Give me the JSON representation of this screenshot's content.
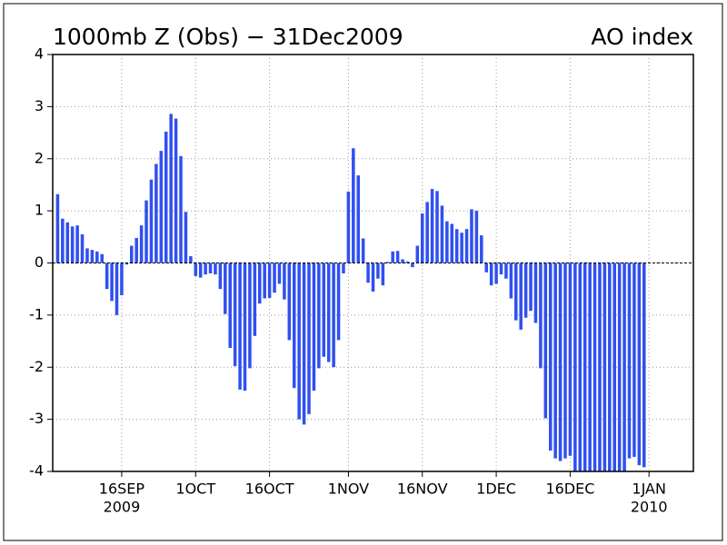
{
  "chart_data": {
    "type": "bar",
    "title": "1000mb Z (Obs) − 31Dec2009",
    "subtitle": "AO index",
    "color": "#3050f0",
    "grid": true,
    "x": [
      "2009-09-03",
      "2009-09-04",
      "2009-09-05",
      "2009-09-06",
      "2009-09-07",
      "2009-09-08",
      "2009-09-09",
      "2009-09-10",
      "2009-09-11",
      "2009-09-12",
      "2009-09-13",
      "2009-09-14",
      "2009-09-15",
      "2009-09-16",
      "2009-09-17",
      "2009-09-18",
      "2009-09-19",
      "2009-09-20",
      "2009-09-21",
      "2009-09-22",
      "2009-09-23",
      "2009-09-24",
      "2009-09-25",
      "2009-09-26",
      "2009-09-27",
      "2009-09-28",
      "2009-09-29",
      "2009-09-30",
      "2009-10-01",
      "2009-10-02",
      "2009-10-03",
      "2009-10-04",
      "2009-10-05",
      "2009-10-06",
      "2009-10-07",
      "2009-10-08",
      "2009-10-09",
      "2009-10-10",
      "2009-10-11",
      "2009-10-12",
      "2009-10-13",
      "2009-10-14",
      "2009-10-15",
      "2009-10-16",
      "2009-10-17",
      "2009-10-18",
      "2009-10-19",
      "2009-10-20",
      "2009-10-21",
      "2009-10-22",
      "2009-10-23",
      "2009-10-24",
      "2009-10-25",
      "2009-10-26",
      "2009-10-27",
      "2009-10-28",
      "2009-10-29",
      "2009-10-30",
      "2009-10-31",
      "2009-11-01",
      "2009-11-02",
      "2009-11-03",
      "2009-11-04",
      "2009-11-05",
      "2009-11-06",
      "2009-11-07",
      "2009-11-08",
      "2009-11-09",
      "2009-11-10",
      "2009-11-11",
      "2009-11-12",
      "2009-11-13",
      "2009-11-14",
      "2009-11-15",
      "2009-11-16",
      "2009-11-17",
      "2009-11-18",
      "2009-11-19",
      "2009-11-20",
      "2009-11-21",
      "2009-11-22",
      "2009-11-23",
      "2009-11-24",
      "2009-11-25",
      "2009-11-26",
      "2009-11-27",
      "2009-11-28",
      "2009-11-29",
      "2009-11-30",
      "2009-12-01",
      "2009-12-02",
      "2009-12-03",
      "2009-12-04",
      "2009-12-05",
      "2009-12-06",
      "2009-12-07",
      "2009-12-08",
      "2009-12-09",
      "2009-12-10",
      "2009-12-11",
      "2009-12-12",
      "2009-12-13",
      "2009-12-14",
      "2009-12-15",
      "2009-12-16",
      "2009-12-17",
      "2009-12-18",
      "2009-12-19",
      "2009-12-20",
      "2009-12-21",
      "2009-12-22",
      "2009-12-23",
      "2009-12-24",
      "2009-12-25",
      "2009-12-26",
      "2009-12-27",
      "2009-12-28",
      "2009-12-29",
      "2009-12-30",
      "2009-12-31"
    ],
    "values": [
      1.32,
      0.85,
      0.78,
      0.7,
      0.72,
      0.55,
      0.28,
      0.25,
      0.22,
      0.17,
      -0.5,
      -0.73,
      -1.0,
      -0.62,
      -0.03,
      0.33,
      0.48,
      0.72,
      1.2,
      1.6,
      1.9,
      2.15,
      2.52,
      2.86,
      2.77,
      2.05,
      0.98,
      0.13,
      -0.25,
      -0.28,
      -0.22,
      -0.2,
      -0.22,
      -0.5,
      -0.98,
      -1.63,
      -1.98,
      -2.43,
      -2.45,
      -2.02,
      -1.4,
      -0.78,
      -0.68,
      -0.67,
      -0.57,
      -0.4,
      -0.7,
      -1.48,
      -2.4,
      -3.0,
      -3.1,
      -2.9,
      -2.45,
      -2.02,
      -1.8,
      -1.9,
      -2.0,
      -1.48,
      -0.2,
      1.37,
      2.2,
      1.68,
      0.47,
      -0.38,
      -0.55,
      -0.3,
      -0.43,
      0.02,
      0.22,
      0.23,
      0.07,
      0.03,
      -0.08,
      0.33,
      0.95,
      1.17,
      1.42,
      1.38,
      1.1,
      0.8,
      0.75,
      0.65,
      0.58,
      0.65,
      1.03,
      1.0,
      0.53,
      -0.18,
      -0.43,
      -0.4,
      -0.22,
      -0.3,
      -0.68,
      -1.1,
      -1.28,
      -1.05,
      -0.92,
      -1.15,
      -2.02,
      -2.98,
      -3.6,
      -3.75,
      -3.8,
      -3.75,
      -3.7,
      -4,
      -4,
      -4,
      -4,
      -4,
      -4,
      -4,
      -4,
      -4,
      -4,
      -4,
      -3.75,
      -3.72,
      -3.88,
      -3.92
    ],
    "xlim": [
      "2009-09-02",
      "2010-01-10"
    ],
    "xticks": [
      {
        "value": "2009-09-16",
        "label": "16SEP",
        "label2": "2009"
      },
      {
        "value": "2009-10-01",
        "label": "1OCT"
      },
      {
        "value": "2009-10-16",
        "label": "16OCT"
      },
      {
        "value": "2009-11-01",
        "label": "1NOV"
      },
      {
        "value": "2009-11-16",
        "label": "16NOV"
      },
      {
        "value": "2009-12-01",
        "label": "1DEC"
      },
      {
        "value": "2009-12-16",
        "label": "16DEC"
      },
      {
        "value": "2010-01-01",
        "label": "1JAN",
        "label2": "2010"
      }
    ],
    "ylim": [
      -4,
      4
    ],
    "yticks": [
      -4,
      -3,
      -2,
      -1,
      0,
      1,
      2,
      3,
      4
    ]
  }
}
